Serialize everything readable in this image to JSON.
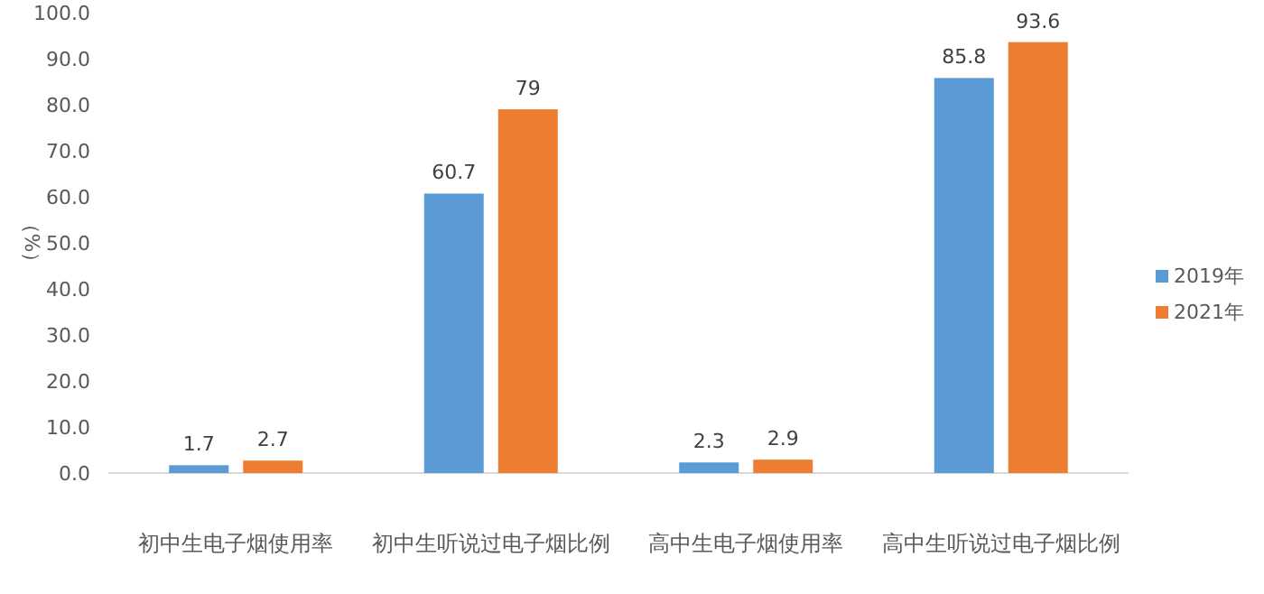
{
  "chart_data": {
    "type": "bar",
    "ylabel": "（%）",
    "categories": [
      "初中生电子烟使用率",
      "初中生听说过电子烟比例",
      "高中生电子烟使用率",
      "高中生听说过电子烟比例"
    ],
    "series": [
      {
        "name": "2019年",
        "color": "#5b9bd5",
        "values": [
          1.7,
          60.7,
          2.3,
          85.8
        ]
      },
      {
        "name": "2021年",
        "color": "#ed7d31",
        "values": [
          2.7,
          79,
          2.9,
          93.6
        ]
      }
    ],
    "ylim": [
      0,
      100
    ],
    "yticks": [
      {
        "value": 0,
        "label": "0.0"
      },
      {
        "value": 10,
        "label": "10.0"
      },
      {
        "value": 20,
        "label": "20.0"
      },
      {
        "value": 30,
        "label": "30.0"
      },
      {
        "value": 40,
        "label": "40.0"
      },
      {
        "value": 50,
        "label": "50.0"
      },
      {
        "value": 60,
        "label": "60.0"
      },
      {
        "value": 70,
        "label": "70.0"
      },
      {
        "value": 80,
        "label": "80.0"
      },
      {
        "value": 90,
        "label": "90.0"
      },
      {
        "value": 100,
        "label": "100.0"
      }
    ],
    "data_labels": true,
    "legend": "right"
  }
}
